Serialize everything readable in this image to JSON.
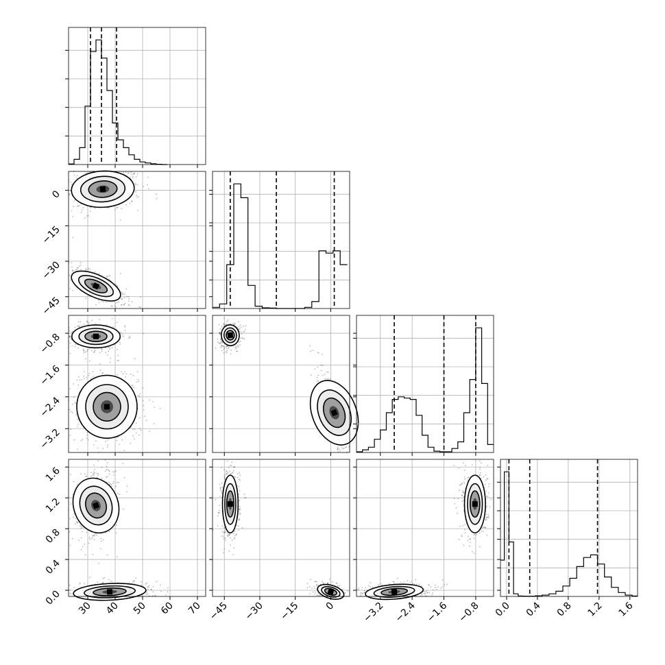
{
  "chart_data": {
    "type": "corner",
    "title": "",
    "parameters": [
      {
        "range": [
          23,
          73
        ],
        "ticks": [
          30,
          40,
          50,
          60,
          70
        ],
        "tick_labels": [
          "30",
          "40",
          "50",
          "60",
          "70"
        ]
      },
      {
        "range": [
          -50,
          8
        ],
        "ticks": [
          -45,
          -30,
          -15,
          0
        ],
        "tick_labels": [
          "−45",
          "−30",
          "−15",
          "0"
        ]
      },
      {
        "range": [
          -3.8,
          -0.35
        ],
        "ticks": [
          -3.2,
          -2.4,
          -1.6,
          -0.8
        ],
        "tick_labels": [
          "−3.2",
          "−2.4",
          "−1.6",
          "−0.8"
        ]
      },
      {
        "range": [
          -0.08,
          1.7
        ],
        "ticks": [
          0.0,
          0.4,
          0.8,
          1.2,
          1.6
        ],
        "tick_labels": [
          "0.0",
          "0.4",
          "0.8",
          "1.2",
          "1.6"
        ]
      }
    ],
    "quantile_lines": [
      [
        31,
        35,
        40.5
      ],
      [
        -42.5,
        -23,
        1.5
      ],
      [
        -2.85,
        -1.6,
        -0.8
      ],
      [
        0.03,
        0.3,
        1.18
      ]
    ],
    "histograms": [
      {
        "bin_edges": [
          23,
          25,
          27,
          29,
          31,
          33,
          35,
          37,
          39,
          41,
          43,
          45,
          47,
          49,
          51,
          53,
          55,
          57,
          59
        ],
        "counts": [
          0.5,
          4,
          13,
          45,
          87,
          96,
          82,
          57,
          32,
          19,
          13,
          7.5,
          4,
          2,
          1.2,
          0.6,
          0.2,
          0
        ]
      },
      {
        "bin_edges": [
          -50,
          -47,
          -44,
          -41,
          -38,
          -35,
          -32,
          -29,
          -26,
          -23,
          -20,
          -17,
          -14,
          -11,
          -8,
          -5,
          -2,
          1,
          4,
          7
        ],
        "counts": [
          0.5,
          2,
          19,
          54,
          48,
          10,
          1,
          0.3,
          0.2,
          0,
          0,
          0,
          0,
          0.5,
          3,
          25,
          24,
          25,
          19
        ]
      },
      {
        "bin_edges": [
          -3.8,
          -3.65,
          -3.5,
          -3.35,
          -3.2,
          -3.05,
          -2.9,
          -2.75,
          -2.6,
          -2.45,
          -2.3,
          -2.15,
          -2.0,
          -1.85,
          -1.7,
          -1.55,
          -1.4,
          -1.25,
          -1.1,
          -0.95,
          -0.8,
          -0.65,
          -0.5,
          -0.35
        ],
        "counts": [
          0.5,
          2,
          4,
          10,
          17,
          30,
          40,
          42,
          41,
          40,
          28,
          13,
          4,
          1,
          0.5,
          0.5,
          3,
          8,
          30,
          55,
          94,
          52,
          6
        ]
      },
      {
        "bin_edges": [
          -0.08,
          -0.03,
          0.03,
          0.09,
          0.15,
          0.21,
          0.28,
          0.37,
          0.46,
          0.55,
          0.64,
          0.73,
          0.82,
          0.91,
          1.0,
          1.09,
          1.18,
          1.27,
          1.36,
          1.45,
          1.54,
          1.63,
          1.7
        ],
        "counts": [
          28,
          96,
          42,
          2,
          0.3,
          0.2,
          0.2,
          0.5,
          1,
          2,
          4,
          8,
          14,
          23,
          30,
          32,
          25,
          15,
          7,
          3,
          1,
          0.3
        ]
      }
    ],
    "modes": [
      [
        {
          "mx": 35.5,
          "my": 0.5,
          "sx": 5.2,
          "sy": 3.5,
          "rho": 0.1,
          "n": 450
        },
        {
          "mx": 33,
          "my": -40.5,
          "sx": 4,
          "sy": 3,
          "rho": -0.7,
          "n": 450
        }
      ],
      [
        {
          "mx": 33,
          "my": -0.88,
          "sx": 4,
          "sy": 0.13,
          "rho": 0,
          "n": 450
        },
        {
          "mx": 37,
          "my": -2.65,
          "sx": 5,
          "sy": 0.36,
          "rho": 0,
          "n": 450
        }
      ],
      [
        {
          "mx": -42.5,
          "my": -0.85,
          "sx": 1.7,
          "sy": 0.12,
          "rho": 0.1,
          "n": 450
        },
        {
          "mx": 1.5,
          "my": -2.8,
          "sx": 2.4,
          "sy": 0.42,
          "rho": -0.85,
          "n": 450
        }
      ],
      [
        {
          "mx": 33,
          "my": 1.1,
          "sx": 3.5,
          "sy": 0.17,
          "rho": 0.25,
          "n": 450
        },
        {
          "mx": 38,
          "my": -0.02,
          "sx": 6,
          "sy": 0.05,
          "rho": 0.2,
          "n": 450
        }
      ],
      [
        {
          "mx": -42.5,
          "my": 1.12,
          "sx": 1.5,
          "sy": 0.17,
          "rho": 0,
          "n": 450
        },
        {
          "mx": 0,
          "my": -0.02,
          "sx": 2.5,
          "sy": 0.045,
          "rho": -0.5,
          "n": 450
        }
      ],
      [
        {
          "mx": -0.82,
          "my": 1.12,
          "sx": 0.12,
          "sy": 0.17,
          "rho": 0,
          "n": 450
        },
        {
          "mx": -2.85,
          "my": -0.02,
          "sx": 0.33,
          "sy": 0.045,
          "rho": 0.3,
          "n": 450
        }
      ]
    ]
  }
}
